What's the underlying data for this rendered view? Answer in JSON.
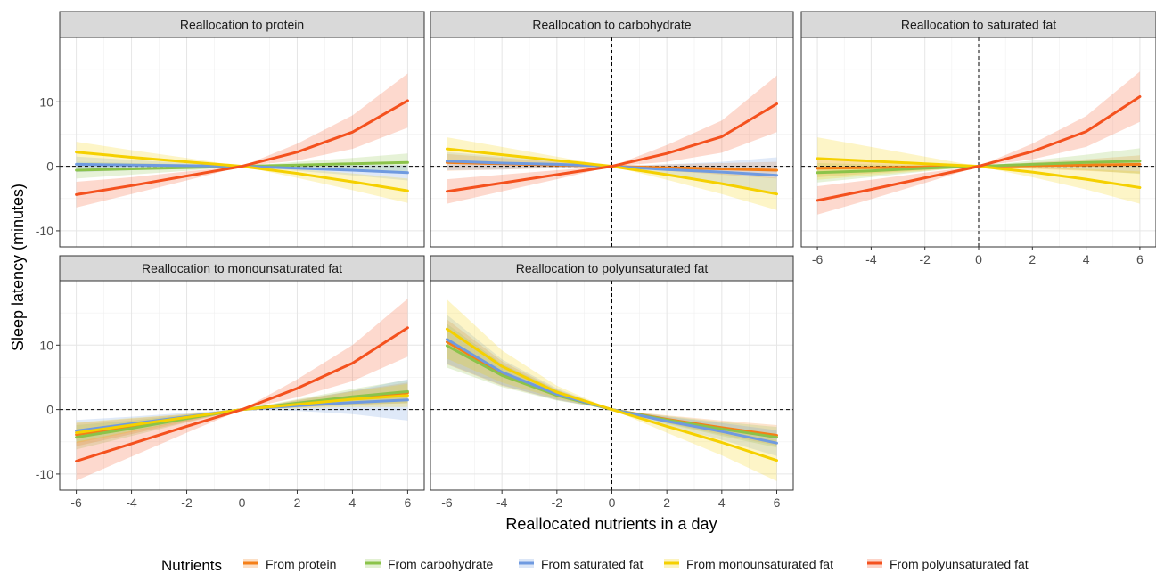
{
  "chart_data": {
    "type": "line",
    "xlabel": "Reallocated nutrients in a day",
    "ylabel": "Sleep latency (minutes)",
    "xlim": [
      -6.6,
      6.6
    ],
    "ylim": [
      -12.5,
      20
    ],
    "xticks": [
      -6,
      -4,
      -2,
      0,
      2,
      4,
      6
    ],
    "yticks": [
      -10,
      0,
      10
    ],
    "grid": true,
    "reference_lines": {
      "x": 0,
      "y": 0,
      "style": "dashed"
    },
    "legend": {
      "title": "Nutrients",
      "position": "bottom",
      "entries": [
        {
          "name": "From protein",
          "color": "#f57f17"
        },
        {
          "name": "From carbohydrate",
          "color": "#8bc34a"
        },
        {
          "name": "From saturated fat",
          "color": "#6f9ae0"
        },
        {
          "name": "From monounsaturated fat",
          "color": "#f5d000"
        },
        {
          "name": "From polyunsaturated fat",
          "color": "#f4511e"
        }
      ]
    },
    "x": [
      -6,
      -4,
      -2,
      0,
      2,
      4,
      6
    ],
    "panels": [
      {
        "title": "Reallocation to protein",
        "series": [
          {
            "name": "From carbohydrate",
            "values": [
              -0.6,
              -0.4,
              -0.2,
              0,
              0.2,
              0.4,
              0.6
            ],
            "ci_width": [
              1.3,
              0.9,
              0.5,
              0,
              0.5,
              0.9,
              1.4
            ]
          },
          {
            "name": "From saturated fat",
            "values": [
              0.3,
              0.2,
              0.1,
              0,
              -0.3,
              -0.6,
              -1.0
            ],
            "ci_width": [
              1.2,
              0.8,
              0.4,
              0,
              0.4,
              0.8,
              1.2
            ]
          },
          {
            "name": "From monounsaturated fat",
            "values": [
              2.2,
              1.4,
              0.7,
              0,
              -1.1,
              -2.4,
              -3.8
            ],
            "ci_width": [
              1.6,
              1.1,
              0.6,
              0,
              0.7,
              1.3,
              1.9
            ]
          },
          {
            "name": "From polyunsaturated fat",
            "values": [
              -4.4,
              -3.0,
              -1.5,
              0,
              2.2,
              5.3,
              10.2
            ],
            "ci_width": [
              2.0,
              1.3,
              0.7,
              0,
              1.3,
              2.6,
              4.2
            ]
          }
        ]
      },
      {
        "title": "Reallocation to carbohydrate",
        "series": [
          {
            "name": "From protein",
            "values": [
              0.6,
              0.4,
              0.2,
              0,
              -0.2,
              -0.4,
              -0.6
            ],
            "ci_width": [
              1.3,
              0.9,
              0.5,
              0,
              0.5,
              0.9,
              1.3
            ]
          },
          {
            "name": "From saturated fat",
            "values": [
              0.8,
              0.5,
              0.3,
              0,
              -0.5,
              -0.9,
              -1.4
            ],
            "ci_width": [
              1.4,
              1.0,
              0.5,
              0,
              0.8,
              1.6,
              2.8
            ]
          },
          {
            "name": "From monounsaturated fat",
            "values": [
              2.7,
              1.8,
              0.9,
              0,
              -1.3,
              -2.7,
              -4.3
            ],
            "ci_width": [
              1.8,
              1.2,
              0.6,
              0,
              0.8,
              1.6,
              2.5
            ]
          },
          {
            "name": "From polyunsaturated fat",
            "values": [
              -3.9,
              -2.6,
              -1.3,
              0,
              2.0,
              4.6,
              9.7
            ],
            "ci_width": [
              1.9,
              1.3,
              0.7,
              0,
              1.3,
              2.5,
              4.4
            ]
          }
        ]
      },
      {
        "title": "Reallocation to saturated fat",
        "series": [
          {
            "name": "From protein",
            "values": [
              -0.3,
              -0.2,
              -0.1,
              0,
              0.1,
              0.2,
              0.3
            ],
            "ci_width": [
              1.4,
              0.9,
              0.5,
              0,
              0.5,
              0.9,
              1.4
            ]
          },
          {
            "name": "From carbohydrate",
            "values": [
              -1.0,
              -0.7,
              -0.3,
              0,
              0.3,
              0.6,
              0.8
            ],
            "ci_width": [
              1.5,
              1.0,
              0.5,
              0,
              0.6,
              1.2,
              2.0
            ]
          },
          {
            "name": "From monounsaturated fat",
            "values": [
              1.2,
              0.8,
              0.4,
              0,
              -0.9,
              -2.0,
              -3.3
            ],
            "ci_width": [
              3.3,
              2.2,
              1.1,
              0,
              0.8,
              1.6,
              2.5
            ]
          },
          {
            "name": "From polyunsaturated fat",
            "values": [
              -5.3,
              -3.6,
              -1.8,
              0,
              2.3,
              5.4,
              10.8
            ],
            "ci_width": [
              2.2,
              1.5,
              0.8,
              0,
              1.2,
              2.4,
              3.9
            ]
          }
        ]
      },
      {
        "title": "Reallocation to monounsaturated fat",
        "series": [
          {
            "name": "From protein",
            "values": [
              -3.9,
              -2.6,
              -1.3,
              0,
              0.9,
              1.8,
              2.6
            ],
            "ci_width": [
              1.8,
              1.2,
              0.6,
              0,
              0.6,
              1.1,
              1.6
            ]
          },
          {
            "name": "From carbohydrate",
            "values": [
              -4.3,
              -2.9,
              -1.4,
              0,
              1.0,
              2.0,
              2.8
            ],
            "ci_width": [
              1.9,
              1.2,
              0.6,
              0,
              0.6,
              1.2,
              1.8
            ]
          },
          {
            "name": "From saturated fat",
            "values": [
              -3.3,
              -2.2,
              -1.1,
              0,
              0.6,
              1.1,
              1.5
            ],
            "ci_width": [
              1.7,
              1.1,
              0.6,
              0,
              0.8,
              1.8,
              3.2
            ]
          },
          {
            "name": "From monounsaturated fat",
            "values": [
              -3.6,
              -2.4,
              -1.2,
              0,
              0.8,
              1.6,
              2.2
            ],
            "ci_width": [
              1.6,
              1.1,
              0.5,
              0,
              0.6,
              1.2,
              1.8
            ]
          },
          {
            "name": "From polyunsaturated fat",
            "values": [
              -8.0,
              -5.3,
              -2.6,
              0,
              3.3,
              7.2,
              12.7
            ],
            "ci_width": [
              3.0,
              2.0,
              1.0,
              0,
              1.4,
              2.8,
              4.5
            ]
          }
        ]
      },
      {
        "title": "Reallocation to polyunsaturated fat",
        "series": [
          {
            "name": "From protein",
            "values": [
              10.5,
              5.6,
              2.3,
              0,
              -1.5,
              -2.8,
              -4.0
            ],
            "ci_width": [
              3.5,
              1.9,
              0.8,
              0,
              0.6,
              1.1,
              1.6
            ]
          },
          {
            "name": "From carbohydrate",
            "values": [
              9.9,
              5.3,
              2.2,
              0,
              -1.6,
              -3.0,
              -4.3
            ],
            "ci_width": [
              3.4,
              1.8,
              0.8,
              0,
              0.6,
              1.1,
              1.6
            ]
          },
          {
            "name": "From saturated fat",
            "values": [
              10.9,
              5.8,
              2.4,
              0,
              -1.8,
              -3.4,
              -5.2
            ],
            "ci_width": [
              3.8,
              2.0,
              0.9,
              0,
              0.7,
              1.3,
              2.0
            ]
          },
          {
            "name": "From monounsaturated fat",
            "values": [
              12.5,
              6.7,
              2.7,
              0,
              -2.6,
              -5.1,
              -7.9
            ],
            "ci_width": [
              4.6,
              2.5,
              1.0,
              0,
              1.0,
              2.0,
              3.2
            ]
          }
        ]
      }
    ]
  }
}
